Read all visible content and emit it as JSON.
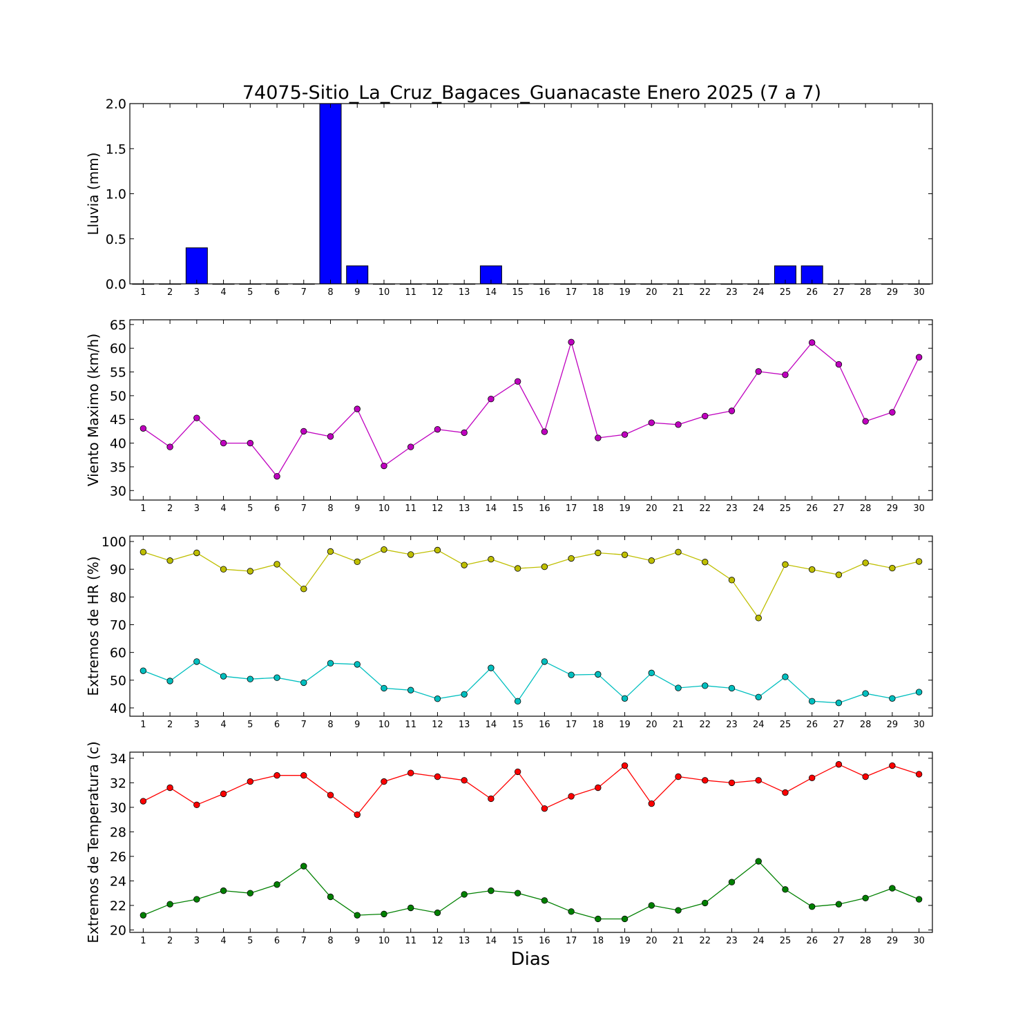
{
  "chart_data": {
    "title": "74075-Sitio_La_Cruz_Bagaces_Guanacaste Enero 2025  (7 a 7)",
    "xlabel": "Dias",
    "days": [
      1,
      2,
      3,
      4,
      5,
      6,
      7,
      8,
      9,
      10,
      11,
      12,
      13,
      14,
      15,
      16,
      17,
      18,
      19,
      20,
      21,
      22,
      23,
      24,
      25,
      26,
      27,
      28,
      29,
      30
    ],
    "panels": [
      {
        "type": "bar",
        "ylabel": "Lluvia (mm)",
        "ylim": [
          0,
          2.0
        ],
        "yticks": [
          0.0,
          0.5,
          1.0,
          1.5,
          2.0
        ],
        "ytick_labels": [
          "0.0",
          "0.5",
          "1.0",
          "1.5",
          "2.0"
        ],
        "series": [
          {
            "color": "#0000ff",
            "values": [
              0,
              0,
              0.4,
              0,
              0,
              0,
              0,
              2.0,
              0.2,
              0,
              0,
              0,
              0,
              0.2,
              0,
              0,
              0,
              0,
              0,
              0,
              0,
              0,
              0,
              0,
              0.2,
              0.2,
              0,
              0,
              0,
              0
            ]
          }
        ]
      },
      {
        "type": "line",
        "ylabel": "Viento Maximo (km/h)",
        "ylim": [
          28,
          66
        ],
        "yticks": [
          30,
          35,
          40,
          45,
          50,
          55,
          60,
          65
        ],
        "ytick_labels": [
          "30",
          "35",
          "40",
          "45",
          "50",
          "55",
          "60",
          "65"
        ],
        "series": [
          {
            "color": "#bf00bf",
            "values": [
              43.1,
              39.2,
              45.3,
              40.0,
              40.0,
              33.0,
              42.5,
              41.4,
              47.2,
              35.2,
              39.2,
              42.9,
              42.2,
              49.3,
              53.0,
              42.4,
              61.3,
              41.1,
              41.8,
              44.3,
              43.9,
              45.7,
              46.8,
              55.1,
              54.4,
              61.2,
              56.6,
              44.6,
              46.5,
              58.1
            ]
          }
        ]
      },
      {
        "type": "line",
        "ylabel": "Extremos de HR (%)",
        "ylim": [
          37,
          102
        ],
        "yticks": [
          40,
          50,
          60,
          70,
          80,
          90,
          100
        ],
        "ytick_labels": [
          "40",
          "50",
          "60",
          "70",
          "80",
          "90",
          "100"
        ],
        "series": [
          {
            "color": "#bfbf00",
            "values": [
              96.2,
              93.1,
              95.9,
              90.0,
              89.3,
              91.8,
              82.9,
              96.4,
              92.7,
              97.1,
              95.3,
              96.9,
              91.5,
              93.6,
              90.3,
              90.9,
              93.9,
              95.9,
              95.2,
              93.1,
              96.2,
              92.6,
              86.1,
              72.4,
              91.7,
              89.9,
              88.0,
              92.3,
              90.4,
              92.8
            ]
          },
          {
            "color": "#00bfbf",
            "values": [
              53.4,
              49.7,
              56.7,
              51.4,
              50.4,
              50.9,
              49.1,
              56.1,
              55.7,
              47.1,
              46.4,
              43.3,
              44.9,
              54.4,
              42.4,
              56.7,
              51.9,
              52.1,
              43.4,
              52.6,
              47.2,
              48.0,
              47.1,
              43.9,
              51.2,
              42.4,
              41.8,
              45.2,
              43.4,
              45.7
            ]
          }
        ]
      },
      {
        "type": "line",
        "ylabel": "Extremos de Temperatura (c)",
        "ylim": [
          19.8,
          34.5
        ],
        "yticks": [
          20,
          22,
          24,
          26,
          28,
          30,
          32,
          34
        ],
        "ytick_labels": [
          "20",
          "22",
          "24",
          "26",
          "28",
          "30",
          "32",
          "34"
        ],
        "series": [
          {
            "color": "#ff0000",
            "values": [
              30.5,
              31.6,
              30.2,
              31.1,
              32.1,
              32.6,
              32.6,
              31.0,
              29.4,
              32.1,
              32.8,
              32.5,
              32.2,
              30.7,
              32.9,
              29.9,
              30.9,
              31.6,
              33.4,
              30.3,
              32.5,
              32.2,
              32.0,
              32.2,
              31.2,
              32.4,
              33.5,
              32.5,
              33.4,
              32.7
            ]
          },
          {
            "color": "#008000",
            "values": [
              21.2,
              22.1,
              22.5,
              23.2,
              23.0,
              23.7,
              25.2,
              22.7,
              21.2,
              21.3,
              21.8,
              21.4,
              22.9,
              23.2,
              23.0,
              22.4,
              21.5,
              20.9,
              20.9,
              22.0,
              21.6,
              22.2,
              23.9,
              25.6,
              23.3,
              21.9,
              22.1,
              22.6,
              23.4,
              22.5
            ]
          }
        ]
      }
    ]
  }
}
